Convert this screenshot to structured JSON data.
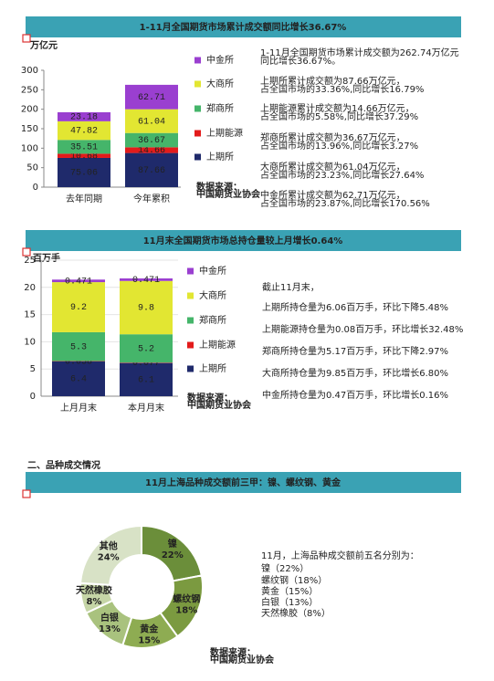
{
  "section_heading": "二、品种成交情况",
  "chart_data": [
    {
      "type": "bar",
      "stacked": true,
      "title": "1-11月全国期货市场累计成交额同比增长36.67%",
      "y_label": "万亿元",
      "categories": [
        "去年同期",
        "今年累积"
      ],
      "ylim": [
        0,
        300
      ],
      "yticks": [
        0,
        50,
        100,
        150,
        200,
        250,
        300
      ],
      "grid": false,
      "series": [
        {
          "name": "上期所",
          "color": "#1f2a6b",
          "values": [
            75.06,
            87.66
          ]
        },
        {
          "name": "上期能源",
          "color": "#e31b1b",
          "values": [
            10.68,
            14.66
          ]
        },
        {
          "name": "郑商所",
          "color": "#45b56a",
          "values": [
            35.51,
            36.67
          ]
        },
        {
          "name": "大商所",
          "color": "#e2e632",
          "values": [
            47.82,
            61.04
          ]
        },
        {
          "name": "中金所",
          "color": "#9a3fd0",
          "values": [
            23.18,
            62.71
          ]
        }
      ],
      "source": [
        "数据来源：",
        "中国期货业协会"
      ],
      "notes": [
        "1-11月全国期货市场累计成交额为262.74万亿元",
        "同比增长36.67%。",
        "上期所累计成交额为87.66万亿元，",
        "占全国市场的33.36%,同比增长16.79%",
        "上期能源累计成交额为14.66万亿元，",
        "占全国市场的5.58%,同比增长37.29%",
        "郑商所累计成交额为36.67万亿元，",
        "占全国市场的13.96%,同比增长3.27%",
        "大商所累计成交额为61.04万亿元，",
        "占全国市场的23.23%,同比增长27.64%",
        "中金所累计成交额为62.71万亿元，",
        "占全国市场的23.87%,同比增长170.56%"
      ]
    },
    {
      "type": "bar",
      "stacked": true,
      "title": "11月末全国期货市场总持仓量较上月增长0.64%",
      "y_label": "百万手",
      "categories": [
        "上月月末",
        "本月月末"
      ],
      "ylim": [
        0,
        25
      ],
      "yticks": [
        0,
        5,
        10,
        15,
        20,
        25
      ],
      "grid": true,
      "series": [
        {
          "name": "上期所",
          "color": "#1f2a6b",
          "values": [
            6.4,
            6.1
          ]
        },
        {
          "name": "上期能源",
          "color": "#e31b1b",
          "values": [
            0.058,
            0.077
          ]
        },
        {
          "name": "郑商所",
          "color": "#45b56a",
          "values": [
            5.3,
            5.2
          ]
        },
        {
          "name": "大商所",
          "color": "#e2e632",
          "values": [
            9.2,
            9.8
          ]
        },
        {
          "name": "中金所",
          "color": "#9a3fd0",
          "values": [
            0.471,
            0.471
          ]
        }
      ],
      "source": [
        "数据来源：",
        "中国期货业协会"
      ],
      "notes": [
        "截止11月末，",
        "上期所持仓量为6.06百万手，环比下降5.48%",
        "上期能源持仓量为0.08百万手，环比增长32.48%",
        "郑商所持仓量为5.17百万手，环比下降2.97%",
        "大商所持仓量为9.85百万手，环比增长6.80%",
        "中金所持仓量为0.47百万手，环比增长0.16%"
      ]
    },
    {
      "type": "donut",
      "title": "11月上海品种成交额前三甲：镍、螺纹钢、黄金",
      "categories": [
        "镍",
        "螺纹钢",
        "黄金",
        "白银",
        "天然橡胶",
        "其他"
      ],
      "values": [
        22,
        18,
        15,
        13,
        8,
        24
      ],
      "value_labels": [
        "22%",
        "18%",
        "15%",
        "13%",
        "8%",
        "24%"
      ],
      "colors": [
        "#6b8e3a",
        "#7b9a40",
        "#8eac52",
        "#a9c27e",
        "#c5d5a6",
        "#d8e2c6"
      ],
      "source": [
        "数据来源：",
        "中国期货业协会"
      ],
      "notes": [
        "11月，上海品种成交额前五名分别为：",
        "镍（22%）",
        "螺纹钢（18%）",
        "黄金（15%）",
        "白银（13%）",
        "天然橡胶（8%）"
      ]
    }
  ]
}
